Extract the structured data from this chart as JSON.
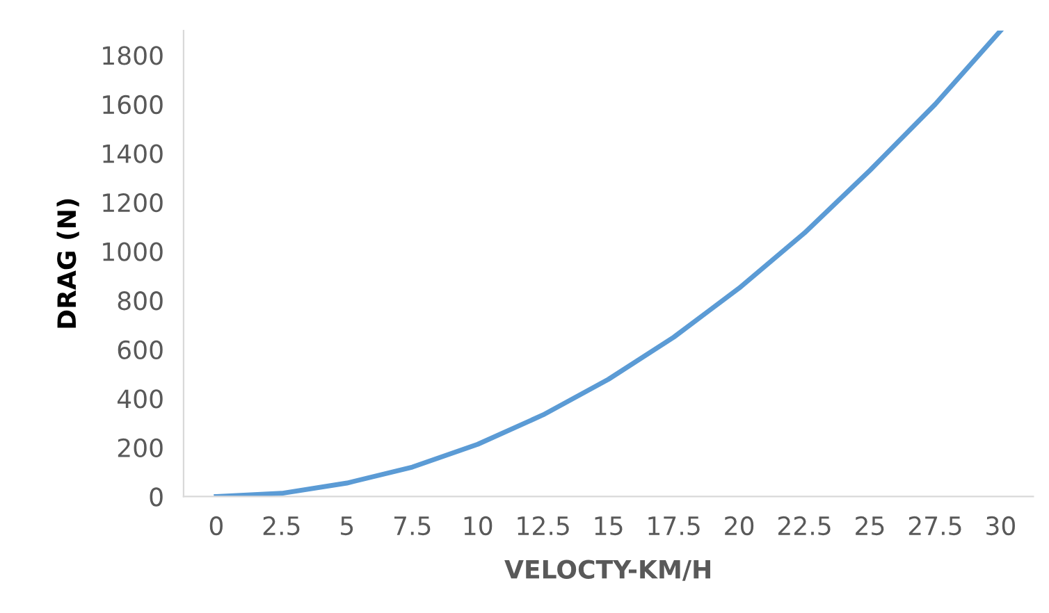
{
  "chart_data": {
    "type": "line",
    "xlabel": "VELOCTY-KM/H",
    "ylabel": "DRAG (N)",
    "categories": [
      "0",
      "2.5",
      "5",
      "7.5",
      "10",
      "12.5",
      "15",
      "17.5",
      "20",
      "22.5",
      "25",
      "27.5",
      "30"
    ],
    "series": [
      {
        "color": "#5b9bd5",
        "values": [
          0,
          13,
          55,
          120,
          213,
          333,
          478,
          650,
          850,
          1075,
          1330,
          1600,
          1900
        ]
      }
    ],
    "ylim": [
      0,
      1900
    ],
    "yticks": [
      0,
      200,
      400,
      600,
      800,
      1000,
      1200,
      1400,
      1600,
      1800
    ],
    "grid": false,
    "marker": "none",
    "line_style": "solid"
  }
}
